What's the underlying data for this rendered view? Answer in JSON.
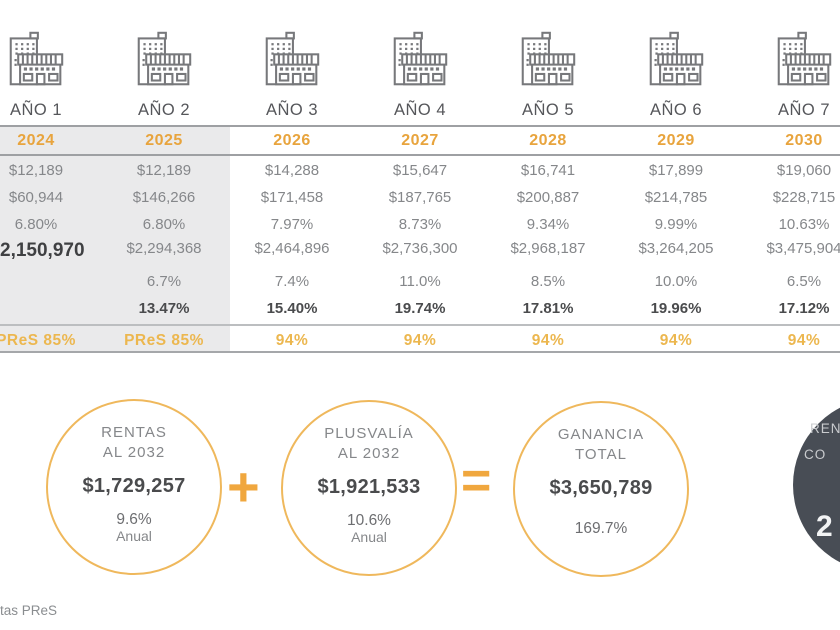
{
  "table": {
    "year_labels": [
      "AÑO 1",
      "AÑO 2",
      "AÑO 3",
      "AÑO 4",
      "AÑO 5",
      "AÑO 6",
      "AÑO 7"
    ],
    "years": [
      "2024",
      "2025",
      "2026",
      "2027",
      "2028",
      "2029",
      "2030"
    ],
    "rows": [
      {
        "values": [
          "$12,189",
          "$12,189",
          "$14,288",
          "$15,647",
          "$16,741",
          "$17,899",
          "$19,060"
        ]
      },
      {
        "values": [
          "$60,944",
          "$146,266",
          "$171,458",
          "$187,765",
          "$200,887",
          "$214,785",
          "$228,715"
        ]
      },
      {
        "values": [
          "6.80%",
          "6.80%",
          "7.97%",
          "8.73%",
          "9.34%",
          "9.99%",
          "10.63%"
        ]
      },
      {
        "values": [
          "2,150,970",
          "$2,294,368",
          "$2,464,896",
          "$2,736,300",
          "$2,968,187",
          "$3,264,205",
          "$3,475,904"
        ]
      },
      {
        "values": [
          "",
          "6.7%",
          "7.4%",
          "11.0%",
          "8.5%",
          "10.0%",
          "6.5%"
        ]
      },
      {
        "values": [
          "",
          "13.47%",
          "15.40%",
          "19.74%",
          "17.81%",
          "19.96%",
          "17.12%"
        ]
      },
      {
        "values": [
          "PReS 85%",
          "PReS 85%",
          "94%",
          "94%",
          "94%",
          "94%",
          "94%"
        ]
      }
    ]
  },
  "chart_data": {
    "type": "table",
    "categories": [
      "2024",
      "2025",
      "2026",
      "2027",
      "2028",
      "2029",
      "2030"
    ],
    "series": [
      {
        "name": "row1",
        "values": [
          12189,
          12189,
          14288,
          15647,
          16741,
          17899,
          19060
        ]
      },
      {
        "name": "row2",
        "values": [
          60944,
          146266,
          171458,
          187765,
          200887,
          214785,
          228715
        ]
      },
      {
        "name": "row3_pct",
        "values": [
          6.8,
          6.8,
          7.97,
          8.73,
          9.34,
          9.99,
          10.63
        ]
      },
      {
        "name": "row4",
        "values": [
          2150970,
          2294368,
          2464896,
          2736300,
          2968187,
          3264205,
          3475904
        ]
      },
      {
        "name": "row5_pct",
        "values": [
          null,
          6.7,
          7.4,
          11.0,
          8.5,
          10.0,
          6.5
        ]
      },
      {
        "name": "row6_pct",
        "values": [
          null,
          13.47,
          15.4,
          19.74,
          17.81,
          19.96,
          17.12
        ]
      },
      {
        "name": "row7_occupancy",
        "values": [
          "PReS 85%",
          "PReS 85%",
          "94%",
          "94%",
          "94%",
          "94%",
          "94%"
        ]
      }
    ],
    "title": ""
  },
  "summary": {
    "plus": "+",
    "equals": "=",
    "circle1": {
      "label_line1": "RENTAS",
      "label_line2": "AL 2032",
      "amount": "$1,729,257",
      "rate": "9.6%",
      "rate_suffix": "Anual"
    },
    "circle2": {
      "label_line1": "PLUSVALÍA",
      "label_line2": "AL 2032",
      "amount": "$1,921,533",
      "rate": "10.6%",
      "rate_suffix": "Anual"
    },
    "circle3": {
      "label_line1": "GANANCIA",
      "label_line2": "TOTAL",
      "amount": "$3,650,789",
      "rate": "169.7%"
    },
    "dark_circle": {
      "label_line1": "REN",
      "label_line2": "CO",
      "value": "2"
    }
  },
  "footer": {
    "legend": "tas PReS"
  },
  "colors": {
    "accent_orange": "#E8A43D",
    "gold": "#ECB74F",
    "circle_stroke": "#EFB85C",
    "operator_orange": "#F0A73E",
    "dark_circle_bg": "#484D55",
    "band_gray": "#EAEAEB"
  },
  "icons": {
    "column_icon": "building-icon"
  }
}
